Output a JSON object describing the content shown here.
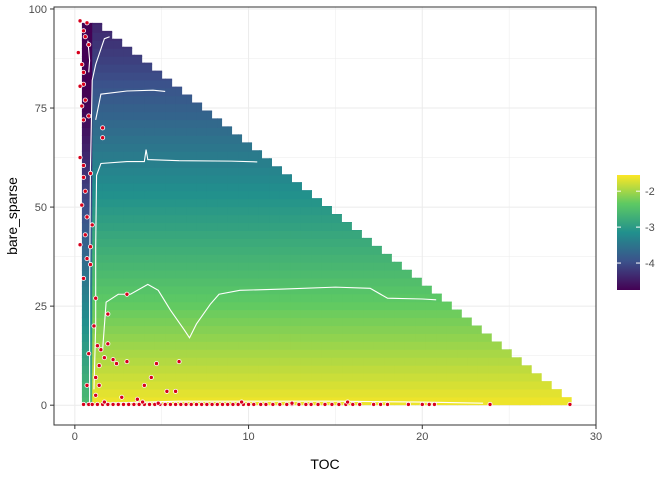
{
  "chart_data": {
    "type": "heatmap",
    "title": "",
    "xlabel": "TOC",
    "ylabel": "bare_sparse",
    "xlim": [
      -1.2,
      30
    ],
    "ylim": [
      -5,
      100.5
    ],
    "x_ticks": [
      0,
      10,
      20,
      30
    ],
    "y_ticks": [
      0,
      25,
      50,
      75,
      100
    ],
    "grid": true,
    "surface_region": {
      "vertices": [
        [
          0.4,
          0
        ],
        [
          0.4,
          96.5
        ],
        [
          1.0,
          96.5
        ],
        [
          28.6,
          0
        ]
      ],
      "description_value_range": [
        -4.7,
        -1.6
      ]
    },
    "colorbar": {
      "min": -4.75,
      "max": -1.55,
      "ticks": [
        -4,
        -3,
        -2
      ],
      "tick_labels": [
        "-4",
        "-3",
        "-2"
      ],
      "colors": [
        "#440154",
        "#3b528b",
        "#21908d",
        "#5dc963",
        "#fde725"
      ],
      "placement": "right"
    },
    "contours": [
      {
        "level": -2.0,
        "points": [
          [
            1.7,
            0.5
          ],
          [
            6,
            1.0
          ],
          [
            10,
            1.0
          ],
          [
            15,
            1.0
          ],
          [
            20,
            0.8
          ],
          [
            23.5,
            0.5
          ]
        ]
      },
      {
        "level": -2.3,
        "points": [
          [
            1.6,
            14
          ],
          [
            1.8,
            26
          ],
          [
            2.5,
            28
          ],
          [
            3.2,
            28
          ],
          [
            4.2,
            30.5
          ],
          [
            4.8,
            29
          ],
          [
            5.5,
            24
          ],
          [
            6.3,
            19
          ],
          [
            6.6,
            17
          ],
          [
            7.0,
            20.5
          ],
          [
            7.8,
            25.5
          ],
          [
            8.3,
            28
          ],
          [
            9.5,
            29
          ],
          [
            12,
            29.3
          ],
          [
            15,
            29.8
          ],
          [
            17,
            29.5
          ],
          [
            18,
            27
          ],
          [
            20,
            26.8
          ],
          [
            20.8,
            26.6
          ]
        ]
      },
      {
        "level": -2.8,
        "points": [
          [
            1.1,
            4
          ],
          [
            1.2,
            20
          ],
          [
            1.2,
            40
          ],
          [
            1.25,
            58
          ],
          [
            1.5,
            61
          ],
          [
            3,
            61.5
          ],
          [
            4.0,
            61.5
          ],
          [
            4.1,
            64.5
          ],
          [
            4.2,
            62
          ],
          [
            6,
            61.7
          ],
          [
            9,
            61.6
          ],
          [
            10.5,
            61.4
          ]
        ]
      },
      {
        "level": -3.3,
        "points": [
          [
            1.2,
            72
          ],
          [
            1.5,
            78.5
          ],
          [
            3,
            79.3
          ],
          [
            4.5,
            79.5
          ],
          [
            5.2,
            79.2
          ]
        ]
      },
      {
        "level": -3.8,
        "points": [
          [
            0.85,
            0
          ],
          [
            0.85,
            30
          ],
          [
            0.9,
            60
          ],
          [
            1.0,
            82
          ],
          [
            1.2,
            86
          ],
          [
            1.7,
            92.5
          ],
          [
            2.0,
            93
          ]
        ]
      },
      {
        "level": -4.4,
        "points": [
          [
            0.75,
            92
          ],
          [
            0.85,
            87
          ],
          [
            0.8,
            84
          ]
        ]
      }
    ],
    "points": {
      "color": "#d7001c",
      "stroke": "#ffffff",
      "values": [
        [
          0.3,
          97.0
        ],
        [
          0.7,
          96.5
        ],
        [
          0.5,
          94.5
        ],
        [
          0.6,
          93.0
        ],
        [
          0.8,
          91.0
        ],
        [
          0.2,
          89.0
        ],
        [
          0.4,
          86.0
        ],
        [
          0.5,
          84.0
        ],
        [
          0.5,
          81.0
        ],
        [
          0.3,
          80.5
        ],
        [
          0.6,
          77.0
        ],
        [
          0.4,
          75.5
        ],
        [
          0.8,
          73.0
        ],
        [
          0.5,
          72.0
        ],
        [
          1.6,
          70.0
        ],
        [
          1.6,
          67.5
        ],
        [
          0.3,
          62.5
        ],
        [
          0.5,
          60.5
        ],
        [
          0.9,
          58.5
        ],
        [
          0.5,
          57.5
        ],
        [
          0.6,
          54.0
        ],
        [
          0.4,
          50.5
        ],
        [
          0.7,
          47.5
        ],
        [
          1.0,
          45.5
        ],
        [
          0.6,
          43.0
        ],
        [
          0.3,
          40.5
        ],
        [
          0.9,
          40.0
        ],
        [
          0.7,
          37.0
        ],
        [
          0.9,
          35.5
        ],
        [
          0.5,
          32.0
        ],
        [
          1.2,
          27.0
        ],
        [
          3.0,
          28.0
        ],
        [
          1.1,
          20.0
        ],
        [
          1.9,
          23.0
        ],
        [
          1.3,
          15.0
        ],
        [
          1.5,
          14.0
        ],
        [
          1.9,
          15.5
        ],
        [
          0.8,
          13.0
        ],
        [
          1.7,
          12.0
        ],
        [
          2.2,
          11.5
        ],
        [
          2.4,
          10.5
        ],
        [
          3.0,
          11.0
        ],
        [
          4.7,
          10.5
        ],
        [
          6.0,
          11.0
        ],
        [
          1.4,
          10.0
        ],
        [
          1.2,
          7.0
        ],
        [
          4.4,
          7.0
        ],
        [
          1.4,
          5.0
        ],
        [
          4.0,
          5.0
        ],
        [
          5.3,
          3.5
        ],
        [
          5.8,
          3.5
        ],
        [
          0.7,
          5.0
        ],
        [
          2.7,
          2.0
        ],
        [
          1.2,
          2.5
        ],
        [
          3.6,
          1.5
        ],
        [
          0.5,
          0.2
        ],
        [
          0.8,
          0.2
        ],
        [
          1.0,
          0.2
        ],
        [
          1.3,
          0.2
        ],
        [
          1.6,
          0.2
        ],
        [
          1.9,
          0.2
        ],
        [
          2.2,
          0.2
        ],
        [
          2.5,
          0.2
        ],
        [
          2.8,
          0.2
        ],
        [
          3.1,
          0.2
        ],
        [
          3.4,
          0.2
        ],
        [
          3.7,
          0.2
        ],
        [
          4.0,
          0.2
        ],
        [
          4.3,
          0.2
        ],
        [
          4.6,
          0.2
        ],
        [
          4.9,
          0.2
        ],
        [
          5.2,
          0.2
        ],
        [
          5.5,
          0.2
        ],
        [
          5.8,
          0.2
        ],
        [
          6.1,
          0.2
        ],
        [
          6.4,
          0.2
        ],
        [
          6.7,
          0.2
        ],
        [
          7.0,
          0.2
        ],
        [
          7.3,
          0.2
        ],
        [
          7.6,
          0.2
        ],
        [
          7.9,
          0.2
        ],
        [
          8.2,
          0.2
        ],
        [
          8.5,
          0.2
        ],
        [
          8.8,
          0.2
        ],
        [
          9.1,
          0.2
        ],
        [
          9.4,
          0.2
        ],
        [
          9.7,
          0.2
        ],
        [
          10.0,
          0.2
        ],
        [
          10.3,
          0.2
        ],
        [
          10.7,
          0.2
        ],
        [
          11.0,
          0.2
        ],
        [
          11.4,
          0.2
        ],
        [
          11.8,
          0.2
        ],
        [
          12.2,
          0.2
        ],
        [
          12.5,
          0.2
        ],
        [
          12.9,
          0.2
        ],
        [
          13.3,
          0.2
        ],
        [
          13.6,
          0.2
        ],
        [
          14.0,
          0.2
        ],
        [
          14.4,
          0.2
        ],
        [
          14.8,
          0.2
        ],
        [
          15.2,
          0.2
        ],
        [
          15.6,
          0.2
        ],
        [
          16.0,
          0.2
        ],
        [
          16.4,
          0.2
        ],
        [
          17.2,
          0.2
        ],
        [
          17.6,
          0.2
        ],
        [
          18.0,
          0.2
        ],
        [
          19.2,
          0.2
        ],
        [
          20.0,
          0.2
        ],
        [
          20.4,
          0.2
        ],
        [
          20.7,
          0.2
        ],
        [
          23.9,
          0.2
        ],
        [
          28.5,
          0.2
        ],
        [
          9.6,
          0.8
        ],
        [
          15.7,
          0.8
        ],
        [
          3.9,
          0.8
        ],
        [
          1.7,
          0.8
        ],
        [
          4.8,
          0.5
        ],
        [
          12.5,
          0.5
        ]
      ]
    }
  }
}
